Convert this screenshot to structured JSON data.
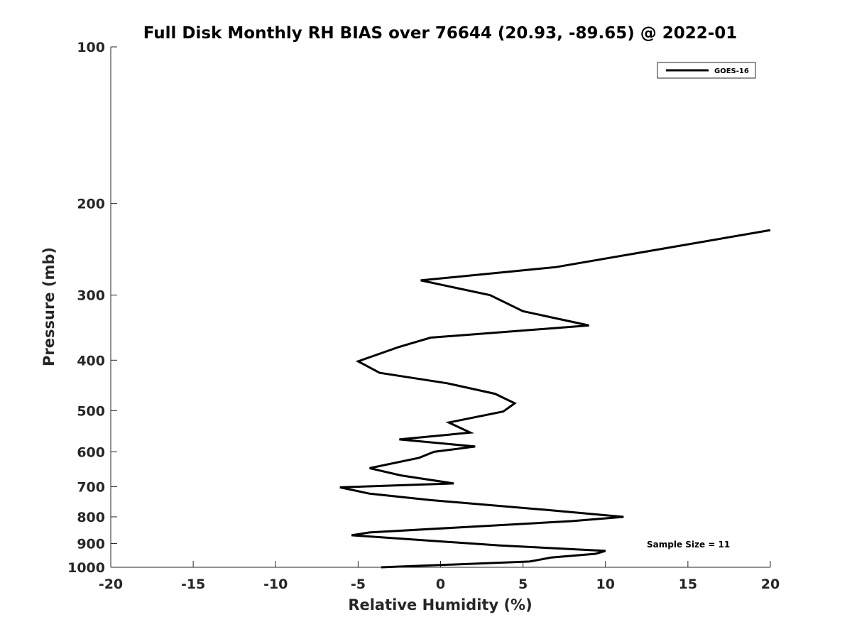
{
  "chart_data": {
    "type": "line",
    "title": "Full Disk Monthly RH BIAS over 76644 (20.93, -89.65) @ 2022-01",
    "xlabel": "Relative Humidity (%)",
    "ylabel": "Pressure (mb)",
    "xlim": [
      -20,
      20
    ],
    "ylim": [
      100,
      1000
    ],
    "y_scale": "log",
    "y_reversed": true,
    "x_ticks": [
      "-20",
      "-15",
      "-10",
      "-5",
      "0",
      "5",
      "10",
      "15",
      "20"
    ],
    "y_ticks": [
      "100",
      "200",
      "300",
      "400",
      "500",
      "600",
      "700",
      "800",
      "900",
      "1000"
    ],
    "grid": false,
    "legend_position": "top-right",
    "series": [
      {
        "name": "GOES-16",
        "color": "#000000",
        "points": [
          {
            "x": 20,
            "p": 225
          },
          {
            "x": 7,
            "p": 265
          },
          {
            "x": -1.2,
            "p": 281
          },
          {
            "x": 3,
            "p": 300
          },
          {
            "x": 5,
            "p": 322
          },
          {
            "x": 9,
            "p": 343
          },
          {
            "x": -0.6,
            "p": 362
          },
          {
            "x": -2.5,
            "p": 377
          },
          {
            "x": -5,
            "p": 402
          },
          {
            "x": -3.7,
            "p": 423
          },
          {
            "x": 0.4,
            "p": 443
          },
          {
            "x": 3.3,
            "p": 464
          },
          {
            "x": 4.5,
            "p": 484
          },
          {
            "x": 3.8,
            "p": 502
          },
          {
            "x": 0.5,
            "p": 527
          },
          {
            "x": 1.8,
            "p": 551
          },
          {
            "x": -2.5,
            "p": 568
          },
          {
            "x": 2.1,
            "p": 586
          },
          {
            "x": -0.4,
            "p": 600
          },
          {
            "x": -1.3,
            "p": 616
          },
          {
            "x": -4.3,
            "p": 645
          },
          {
            "x": -2.4,
            "p": 666
          },
          {
            "x": 0.8,
            "p": 690
          },
          {
            "x": -6.1,
            "p": 702
          },
          {
            "x": -4.3,
            "p": 722
          },
          {
            "x": -0.6,
            "p": 743
          },
          {
            "x": 6.3,
            "p": 775
          },
          {
            "x": 11.1,
            "p": 800
          },
          {
            "x": 8,
            "p": 815
          },
          {
            "x": -4.3,
            "p": 857
          },
          {
            "x": -5.4,
            "p": 868
          },
          {
            "x": 3.6,
            "p": 908
          },
          {
            "x": 10,
            "p": 930
          },
          {
            "x": 9.4,
            "p": 942
          },
          {
            "x": 6.7,
            "p": 958
          },
          {
            "x": 5.4,
            "p": 975
          },
          {
            "x": -3.6,
            "p": 1000
          }
        ]
      }
    ],
    "annotations": [
      "Sample Size = 11"
    ]
  }
}
